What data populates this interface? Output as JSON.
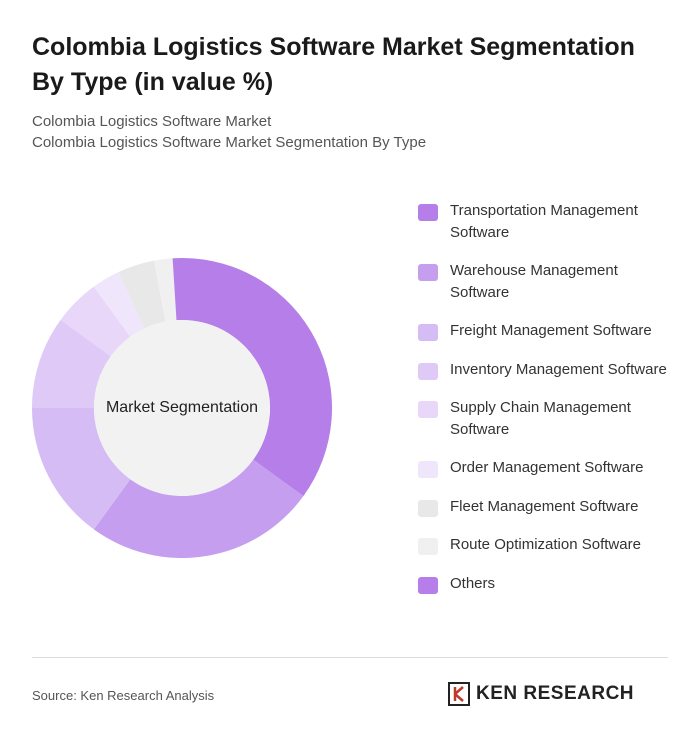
{
  "header": {
    "title": "Colombia Logistics Software Market Segmentation By Type (in value %)",
    "breadcrumb": [
      "Colombia Logistics Software Market",
      "Colombia Logistics Software Market Segmentation By Type"
    ]
  },
  "chart_data": {
    "type": "pie",
    "center_label": "Market Segmentation",
    "categories": [
      "Transportation Management Software",
      "Warehouse Management Software",
      "Freight Management Software",
      "Inventory Management Software",
      "Supply Chain Management Software",
      "Order Management Software",
      "Fleet Management Software",
      "Route Optimization Software",
      "Others"
    ],
    "values": [
      35,
      25,
      15,
      10,
      5,
      3,
      4,
      2,
      1
    ],
    "colors": [
      "#b57ee8",
      "#c59ef0",
      "#d6bcf5",
      "#dfc9f7",
      "#e8d7f9",
      "#efe6fb",
      "#e8e8e8",
      "#f0f0f0",
      "#b57ee8"
    ]
  },
  "footer": {
    "source": "Source: Ken Research Analysis",
    "logo": "KEN RESEARCH"
  }
}
